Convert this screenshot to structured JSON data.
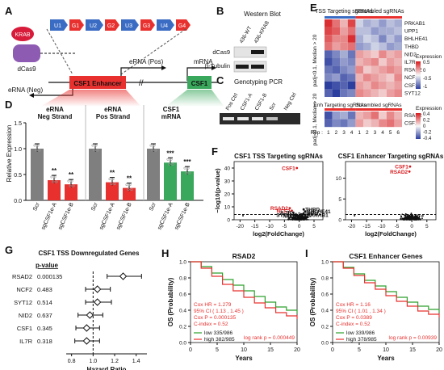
{
  "panel_letters": [
    "A",
    "B",
    "C",
    "D",
    "E",
    "F",
    "G",
    "H",
    "I"
  ],
  "panelA": {
    "krab": "KRAB",
    "dcas9": "dCas9",
    "segments": [
      "U1",
      "G1",
      "U2",
      "G2",
      "U3",
      "G3",
      "U4",
      "G4"
    ],
    "erna_pos": "eRNA (Pos)",
    "erna_neg": "eRNA (Neg)",
    "mrna": "mRNA",
    "enhancer": "CSF1 Enhancer",
    "gene": "CSF1"
  },
  "panelB": {
    "title": "Western Blot",
    "lanes": [
      "436-WT",
      "436-KRAB"
    ],
    "rows": [
      "dCas9",
      "β-Tubulin"
    ]
  },
  "panelC": {
    "title": "Genotyping PCR",
    "lanes": [
      "Pos Ctrl",
      "CSF1-A",
      "CSF1-B",
      "Scr",
      "Neg Ctrl"
    ]
  },
  "panelE": {
    "col_groups": [
      "TSS Targeting sgRNAs",
      "Scrambled sgRNAs"
    ],
    "col_groups_bottom": [
      "Enh Targeting sgRNAs",
      "Scrambled sgRNAs"
    ],
    "top_genes": [
      "PRKAB1",
      "UPP1",
      "BHLHE41",
      "THBD",
      "NID2",
      "IL7R",
      "RSAD2",
      "NCF2",
      "CSF1",
      "SYT12"
    ],
    "bottom_genes": [
      "RSAD2",
      "CSF1"
    ],
    "side_top": "padj<0.1, Median > 20",
    "side_bottom": "padj<0.1, Median > 20",
    "rep_label": "Rep :",
    "reps": [
      "1",
      "2",
      "3",
      "4",
      "1",
      "2",
      "3",
      "4",
      "5",
      "6"
    ],
    "legend_top": {
      "title": "Expression",
      "ticks": [
        "0.5",
        "0",
        "-0.5",
        "-1"
      ]
    },
    "legend_bottom": {
      "title": "Expression",
      "ticks": [
        "0.4",
        "0.2",
        "0",
        "-0.2",
        "-0.4"
      ]
    },
    "colors": {
      "high": "#d7191c",
      "mid": "#f7f7f7",
      "low": "#2c3e9e"
    }
  },
  "chart_data": [
    {
      "id": "D",
      "type": "bar",
      "ylabel": "Relative Expression",
      "ylim": [
        0,
        1.5
      ],
      "yticks": [
        "0.0",
        "0.5",
        "1.0",
        "1.5"
      ],
      "groups": [
        {
          "title": "eRNA Neg Strand",
          "categories": [
            "Scr",
            "sgCSF1e-A",
            "sgCSF1e-B"
          ],
          "values": [
            1.0,
            0.39,
            0.31
          ],
          "sig": [
            "",
            "**",
            "**"
          ],
          "colors": [
            "#7f7f7f",
            "#e8312f",
            "#e8312f"
          ]
        },
        {
          "title": "eRNA Pos Strand",
          "categories": [
            "Scr",
            "sgCSF1e-A",
            "sgCSF1e-B"
          ],
          "values": [
            1.0,
            0.35,
            0.24
          ],
          "sig": [
            "",
            "**",
            "**"
          ],
          "colors": [
            "#7f7f7f",
            "#e8312f",
            "#e8312f"
          ]
        },
        {
          "title": "CSF1 mRNA",
          "categories": [
            "Scr",
            "sgCSF1e-A",
            "sgCSF1e-B"
          ],
          "values": [
            1.0,
            0.73,
            0.56
          ],
          "sig": [
            "",
            "***",
            "***"
          ],
          "colors": [
            "#7f7f7f",
            "#3aa85c",
            "#3aa85c"
          ]
        }
      ]
    },
    {
      "id": "F1",
      "type": "scatter",
      "title": "CSF1 TSS Targeting sgRNAs",
      "xlabel": "log2(FoldChange)",
      "ylabel": "−log10(p-value)",
      "xlim": [
        -22,
        8
      ],
      "ylim": [
        0,
        45
      ],
      "xticks": [
        "-20",
        "-15",
        "-10",
        "-5",
        "0",
        "5"
      ],
      "yticks": [
        "0",
        "10",
        "20",
        "30",
        "40"
      ],
      "labels": [
        {
          "text": "CSF1",
          "x": -0.8,
          "y": 40,
          "color": "#d7191c"
        },
        {
          "text": "RSAD2",
          "x": -3.2,
          "y": 9,
          "color": "#d7191c"
        },
        {
          "text": "NCF2",
          "x": -2.5,
          "y": 7,
          "color": "#d7191c"
        },
        {
          "text": "IL7R",
          "x": -2,
          "y": 5.5,
          "color": "#111"
        },
        {
          "text": "SYT12",
          "x": -1.8,
          "y": 3.8,
          "color": "#111"
        },
        {
          "text": "NID2",
          "x": -1,
          "y": 3,
          "color": "#111"
        },
        {
          "text": "THBD",
          "x": 1.5,
          "y": 8,
          "color": "#111"
        },
        {
          "text": "BHLHE41",
          "x": 2,
          "y": 6.5,
          "color": "#111"
        },
        {
          "text": "UPP1",
          "x": 1.5,
          "y": 5,
          "color": "#111"
        },
        {
          "text": "PRKAB1",
          "x": 2,
          "y": 3.6,
          "color": "#111"
        }
      ]
    },
    {
      "id": "F2",
      "type": "scatter",
      "title": "CSF1 Enhancer Targeting sgRNAs",
      "xlabel": "log2(FoldChange)",
      "ylabel": "",
      "xlim": [
        -22,
        8
      ],
      "ylim": [
        0,
        14
      ],
      "xticks": [
        "-20",
        "-15",
        "-10",
        "-5",
        "0",
        "5"
      ],
      "yticks": [
        "0",
        "5",
        "10"
      ],
      "labels": [
        {
          "text": "CSF1",
          "x": -0.6,
          "y": 12.8,
          "color": "#d7191c"
        },
        {
          "text": "RSAD2",
          "x": -0.8,
          "y": 11.6,
          "color": "#d7191c"
        }
      ]
    },
    {
      "id": "G",
      "type": "forest",
      "title": "CSF1 TSS Downregulated Genes",
      "pvalue_header": "p-value",
      "xlabel": "Hazard Ratio",
      "xlim": [
        0.75,
        1.5
      ],
      "xticks": [
        "0.8",
        "1.0",
        "1.2",
        "1.4"
      ],
      "rows": [
        {
          "gene": "RSAD2",
          "p": "0.000135",
          "hr": 1.279,
          "lo": 1.13,
          "hi": 1.45
        },
        {
          "gene": "NCF2",
          "p": "0.483",
          "hr": 1.04,
          "lo": 0.93,
          "hi": 1.16
        },
        {
          "gene": "SYT12",
          "p": "0.514",
          "hr": 1.04,
          "lo": 0.93,
          "hi": 1.17
        },
        {
          "gene": "NID2",
          "p": "0.637",
          "hr": 0.97,
          "lo": 0.86,
          "hi": 1.09
        },
        {
          "gene": "CSF1",
          "p": "0.345",
          "hr": 0.94,
          "lo": 0.84,
          "hi": 1.06
        },
        {
          "gene": "IL7R",
          "p": "0.318",
          "hr": 0.94,
          "lo": 0.83,
          "hi": 1.06
        }
      ]
    },
    {
      "id": "H",
      "type": "line",
      "title": "RSAD2",
      "xlabel": "Years",
      "ylabel": "OS (Probability)",
      "xlim": [
        0,
        20
      ],
      "ylim": [
        0,
        1
      ],
      "xticks": [
        "0",
        "5",
        "10",
        "15",
        "20"
      ],
      "yticks": [
        "0.0",
        "0.2",
        "0.4",
        "0.6",
        "0.8",
        "1.0"
      ],
      "series": [
        {
          "name": "low 335/986",
          "color": "#2ca02c",
          "x": [
            0,
            2,
            4,
            6,
            8,
            10,
            12,
            14,
            16,
            18,
            20
          ],
          "y": [
            1,
            0.94,
            0.86,
            0.78,
            0.71,
            0.64,
            0.57,
            0.5,
            0.44,
            0.4,
            0.36
          ]
        },
        {
          "name": "high 382/985",
          "color": "#e8312f",
          "x": [
            0,
            2,
            4,
            6,
            8,
            10,
            12,
            14,
            16,
            18,
            20
          ],
          "y": [
            1,
            0.92,
            0.82,
            0.72,
            0.64,
            0.56,
            0.49,
            0.43,
            0.37,
            0.33,
            0.29
          ]
        }
      ],
      "stats": [
        "Cox HR = 1.279",
        "95% CI ( 1.13 , 1.45 )",
        "Cox P = 0.000135",
        "C-index = 0.52"
      ],
      "logrank": "log rank p = 0.000449"
    },
    {
      "id": "I",
      "type": "line",
      "title": "CSF1 Enhancer Genes",
      "xlabel": "Years",
      "ylabel": "OS (Probability)",
      "xlim": [
        0,
        20
      ],
      "ylim": [
        0,
        1
      ],
      "xticks": [
        "0",
        "5",
        "10",
        "15",
        "20"
      ],
      "yticks": [
        "0.0",
        "0.2",
        "0.4",
        "0.6",
        "0.8",
        "1.0"
      ],
      "series": [
        {
          "name": "low 339/986",
          "color": "#2ca02c",
          "x": [
            0,
            2,
            4,
            6,
            8,
            10,
            12,
            14,
            16,
            18,
            20
          ],
          "y": [
            1,
            0.93,
            0.85,
            0.77,
            0.7,
            0.63,
            0.56,
            0.5,
            0.45,
            0.41,
            0.37
          ]
        },
        {
          "name": "high 378/985",
          "color": "#e8312f",
          "x": [
            0,
            2,
            4,
            6,
            8,
            10,
            12,
            14,
            16,
            18,
            20
          ],
          "y": [
            1,
            0.92,
            0.83,
            0.74,
            0.66,
            0.58,
            0.51,
            0.45,
            0.39,
            0.35,
            0.31
          ]
        }
      ],
      "stats": [
        "Cox HR = 1.16",
        "95% CI ( 1.01 , 1.34 )",
        "Cox P = 0.0389",
        "C-index = 0.52"
      ],
      "logrank": "log rank p = 0.00939"
    }
  ]
}
